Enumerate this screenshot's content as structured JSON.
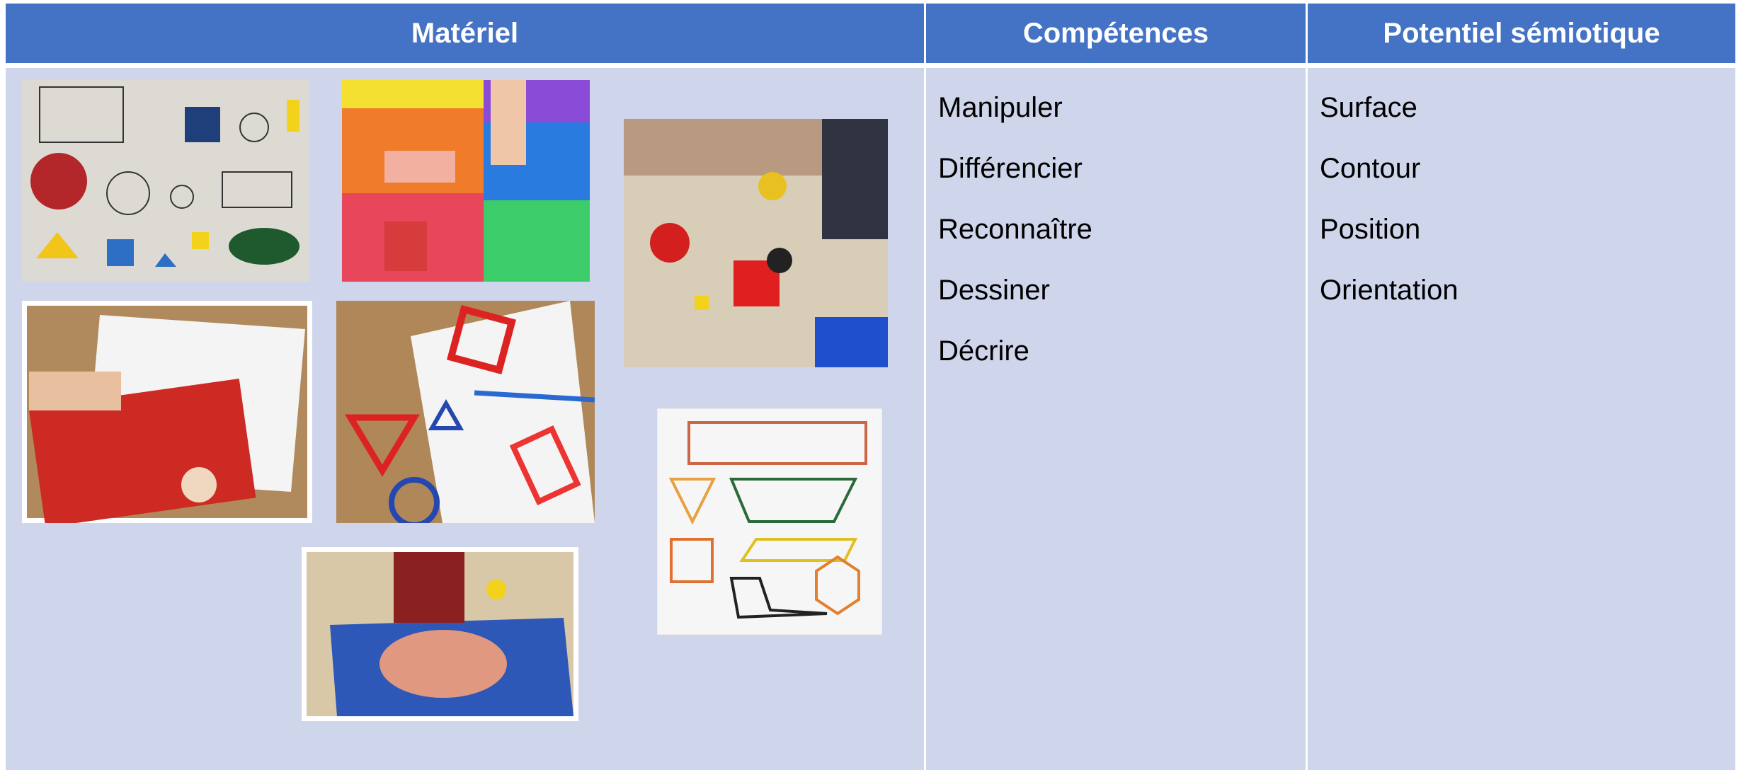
{
  "table": {
    "headers": [
      "Matériel",
      "Compétences",
      "Potentiel sémiotique"
    ],
    "competences": [
      "Manipuler",
      "Différencier",
      "Reconnaître",
      "Dessiner",
      "Décrire"
    ],
    "potentiel": [
      "Surface",
      "Contour",
      "Position",
      "Orientation"
    ]
  }
}
